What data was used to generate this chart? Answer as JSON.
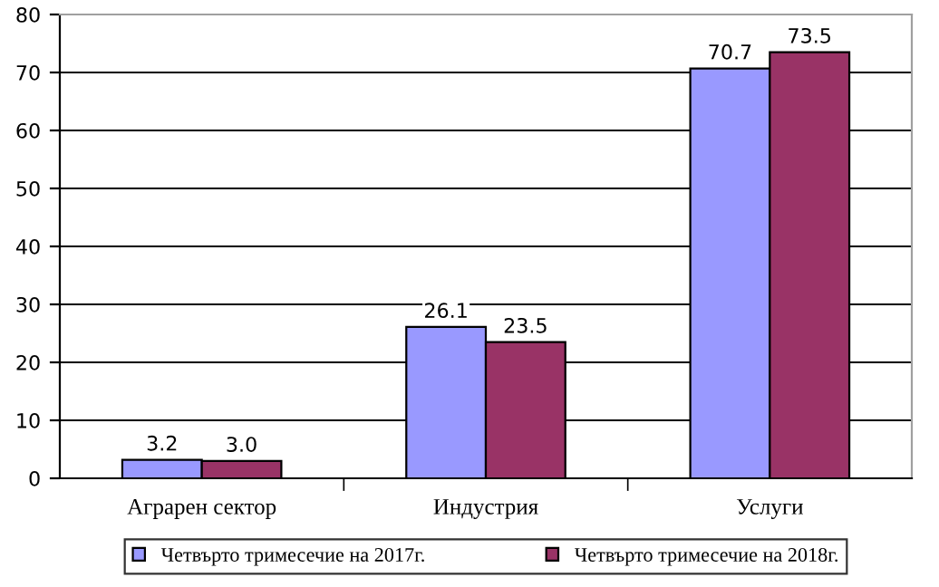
{
  "chart_data": {
    "type": "bar",
    "categories": [
      "Аграрен сектор",
      "Индустрия",
      "Услуги"
    ],
    "series": [
      {
        "name": "Четвърто тримесечие на 2017г.",
        "color": "#9999ff",
        "values": [
          3.2,
          26.1,
          70.7
        ]
      },
      {
        "name": "Четвърто тримесечие на 2018г.",
        "color": "#993366",
        "values": [
          3.0,
          23.5,
          73.5
        ]
      }
    ],
    "value_labels": [
      [
        "3.2",
        "26.1",
        "70.7"
      ],
      [
        "3.0",
        "23.5",
        "73.5"
      ]
    ],
    "ylim": [
      0,
      80
    ],
    "yticks": [
      0,
      10,
      20,
      30,
      40,
      50,
      60,
      70,
      80
    ],
    "grid": "y",
    "legend": "bottom"
  }
}
